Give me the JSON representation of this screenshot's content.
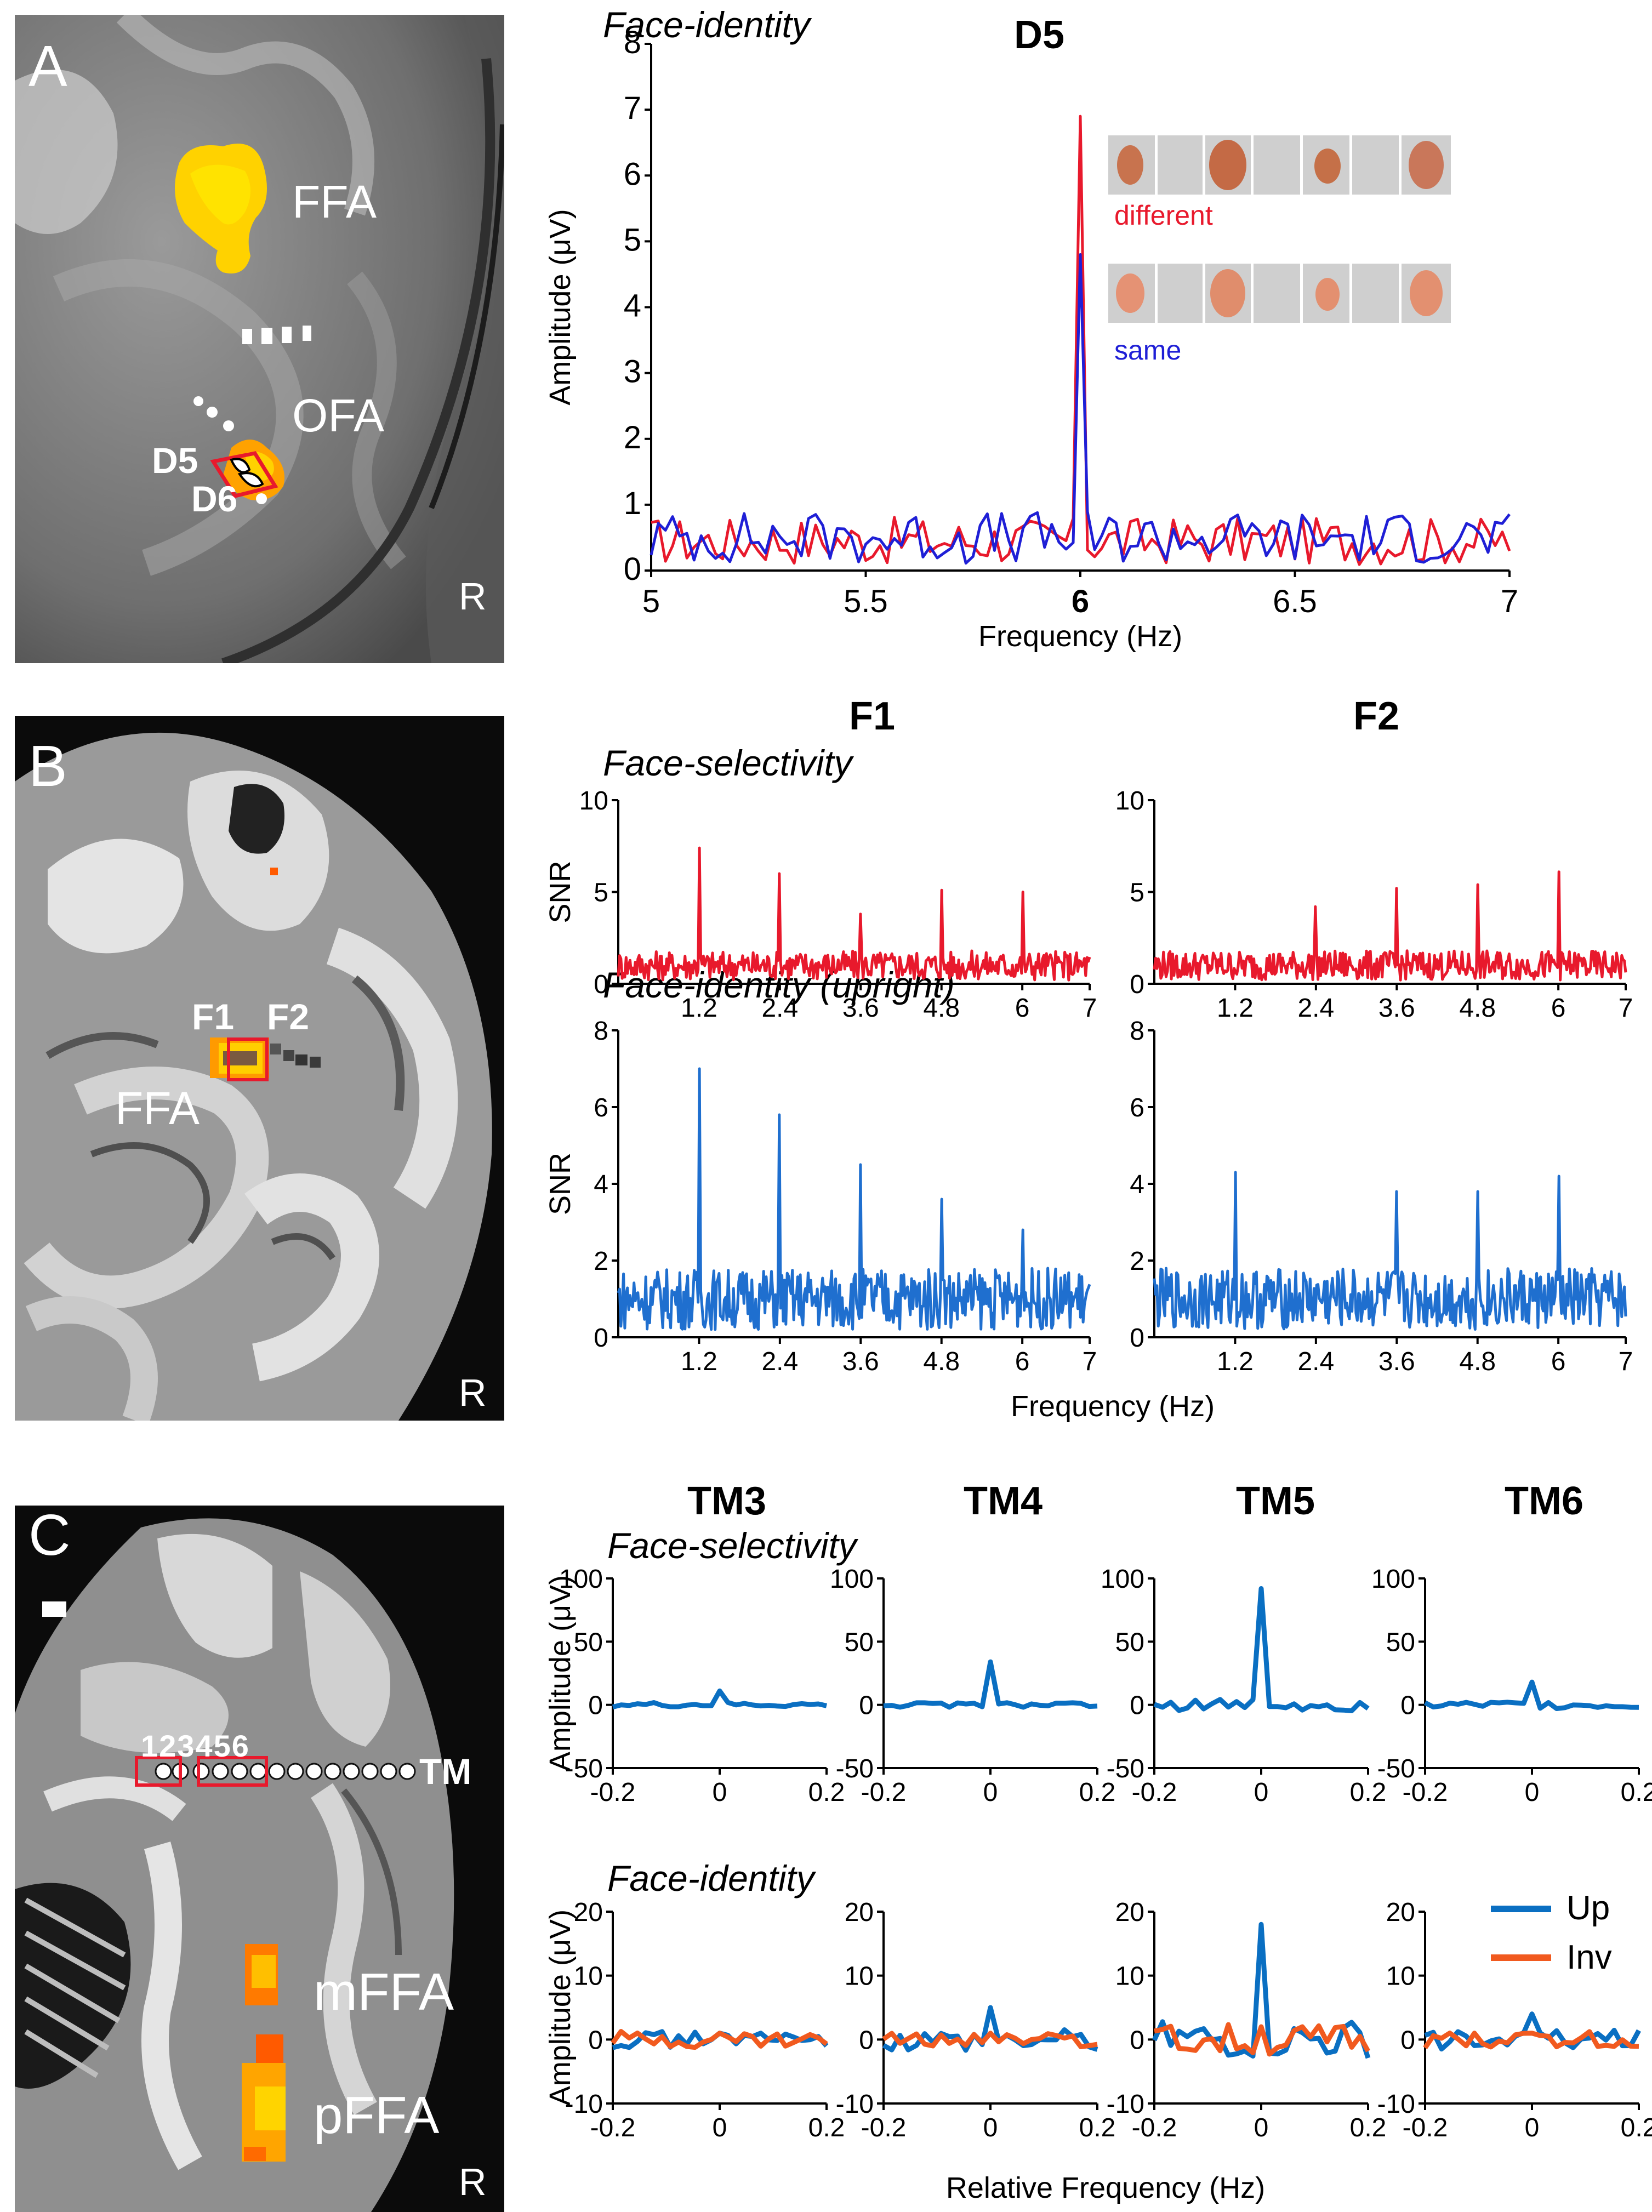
{
  "panels": {
    "A": {
      "letter": "A",
      "labels": {
        "ffa": "FFA",
        "ofa": "OFA",
        "d5": "D5",
        "d6": "D6",
        "r": "R"
      },
      "chart_title": "D5",
      "section_title": "Face-identity",
      "legend": {
        "different": "different",
        "same": "same"
      }
    },
    "B": {
      "letter": "B",
      "labels": {
        "f1": "F1",
        "f2": "F2",
        "ffa": "FFA",
        "r": "R"
      },
      "col_titles": [
        "F1",
        "F2"
      ],
      "section_titles": [
        "Face-selectivity",
        "Face-identity (upright)"
      ],
      "xlabel": "Frequency (Hz)"
    },
    "C": {
      "letter": "C",
      "labels": {
        "numbers": "123456",
        "tm": "TM",
        "mffa": "mFFA",
        "pffa": "pFFA",
        "r": "R"
      },
      "col_titles": [
        "TM3",
        "TM4",
        "TM5",
        "TM6"
      ],
      "section_titles": [
        "Face-selectivity",
        "Face-identity"
      ],
      "xlabel": "Relative Frequency (Hz)",
      "legend": {
        "up": "Up",
        "inv": "Inv"
      }
    }
  },
  "colors": {
    "red": "#e8192c",
    "blue": "#1f1fd6",
    "cblue": "#0a6fc2",
    "corange": "#f15a1f",
    "face_blue": "#1f6fcf"
  },
  "chart_data": [
    {
      "id": "A-D5",
      "type": "line",
      "title": "D5",
      "xlabel": "Frequency (Hz)",
      "ylabel": "Amplitude (μV)",
      "xlim": [
        5,
        7
      ],
      "ylim": [
        0,
        8
      ],
      "xticks": [
        "5",
        "5.5",
        "6",
        "6.5",
        "7"
      ],
      "yticks": [
        "0",
        "1",
        "2",
        "3",
        "4",
        "5",
        "6",
        "7",
        "8"
      ],
      "series": [
        {
          "name": "different",
          "color": "#e8192c",
          "peaks": [
            [
              6.0,
              6.9
            ]
          ],
          "baseline": 0.45
        },
        {
          "name": "same",
          "color": "#1f1fd6",
          "peaks": [
            [
              6.0,
              4.8
            ]
          ],
          "baseline": 0.5
        }
      ]
    },
    {
      "id": "B-F1-sel",
      "type": "line",
      "ylabel": "SNR",
      "xlim": [
        0,
        7
      ],
      "ylim": [
        0,
        10
      ],
      "xticks": [
        "1.2",
        "2.4",
        "3.6",
        "4.8",
        "6",
        "7"
      ],
      "yticks": [
        "0",
        "5",
        "10"
      ],
      "series": [
        {
          "name": "Face-selectivity",
          "color": "#e8192c",
          "peaks": [
            [
              1.2,
              7.4
            ],
            [
              2.4,
              6.0
            ],
            [
              3.6,
              3.8
            ],
            [
              4.8,
              5.1
            ],
            [
              6.0,
              5.0
            ]
          ],
          "baseline": 1.0
        }
      ]
    },
    {
      "id": "B-F2-sel",
      "type": "line",
      "ylabel": "",
      "xlim": [
        0,
        7
      ],
      "ylim": [
        0,
        10
      ],
      "xticks": [
        "1.2",
        "2.4",
        "3.6",
        "4.8",
        "6",
        "7"
      ],
      "yticks": [
        "0",
        "5",
        "10"
      ],
      "series": [
        {
          "name": "Face-selectivity",
          "color": "#e8192c",
          "peaks": [
            [
              2.4,
              4.2
            ],
            [
              3.6,
              5.2
            ],
            [
              4.8,
              5.4
            ],
            [
              6.0,
              6.1
            ]
          ],
          "baseline": 1.0
        }
      ]
    },
    {
      "id": "B-F1-id",
      "type": "line",
      "ylabel": "SNR",
      "xlim": [
        0,
        7
      ],
      "ylim": [
        0,
        8
      ],
      "xticks": [
        "1.2",
        "2.4",
        "3.6",
        "4.8",
        "6",
        "7"
      ],
      "yticks": [
        "0",
        "2",
        "4",
        "6",
        "8"
      ],
      "series": [
        {
          "name": "Face-identity (upright)",
          "color": "#1f6fcf",
          "peaks": [
            [
              1.2,
              7.0
            ],
            [
              2.4,
              5.8
            ],
            [
              3.6,
              4.5
            ],
            [
              4.8,
              3.6
            ],
            [
              6.0,
              2.8
            ]
          ],
          "baseline": 1.0
        }
      ]
    },
    {
      "id": "B-F2-id",
      "type": "line",
      "ylabel": "",
      "xlim": [
        0,
        7
      ],
      "ylim": [
        0,
        8
      ],
      "xticks": [
        "1.2",
        "2.4",
        "3.6",
        "4.8",
        "6",
        "7"
      ],
      "yticks": [
        "0",
        "2",
        "4",
        "6",
        "8"
      ],
      "series": [
        {
          "name": "Face-identity (upright)",
          "color": "#1f6fcf",
          "peaks": [
            [
              1.2,
              4.3
            ],
            [
              3.6,
              3.8
            ],
            [
              4.8,
              3.8
            ],
            [
              6.0,
              4.2
            ]
          ],
          "baseline": 1.0
        }
      ]
    },
    {
      "id": "C-TM3-sel",
      "type": "line",
      "ylabel": "Amplitude (μV)",
      "xlim": [
        -0.2,
        0.2
      ],
      "ylim": [
        -50,
        100
      ],
      "xticks": [
        "-0.2",
        "0",
        "0.2"
      ],
      "yticks": [
        "-50",
        "0",
        "50",
        "100"
      ],
      "series": [
        {
          "name": "Up",
          "color": "#0a6fc2",
          "peak": 11,
          "noise": 2
        }
      ]
    },
    {
      "id": "C-TM4-sel",
      "type": "line",
      "ylabel": "",
      "xlim": [
        -0.2,
        0.2
      ],
      "ylim": [
        -50,
        100
      ],
      "xticks": [
        "-0.2",
        "0",
        "0.2"
      ],
      "yticks": [
        "-50",
        "0",
        "50",
        "100"
      ],
      "series": [
        {
          "name": "Up",
          "color": "#0a6fc2",
          "peak": 34,
          "noise": 2
        }
      ]
    },
    {
      "id": "C-TM5-sel",
      "type": "line",
      "ylabel": "",
      "xlim": [
        -0.2,
        0.2
      ],
      "ylim": [
        -50,
        100
      ],
      "xticks": [
        "-0.2",
        "0",
        "0.2"
      ],
      "yticks": [
        "-50",
        "0",
        "50",
        "100"
      ],
      "series": [
        {
          "name": "Up",
          "color": "#0a6fc2",
          "peak": 92,
          "noise": 5
        }
      ]
    },
    {
      "id": "C-TM6-sel",
      "type": "line",
      "ylabel": "",
      "xlim": [
        -0.2,
        0.2
      ],
      "ylim": [
        -50,
        100
      ],
      "xticks": [
        "-0.2",
        "0",
        "0.2"
      ],
      "yticks": [
        "-50",
        "0",
        "50",
        "100"
      ],
      "series": [
        {
          "name": "Up",
          "color": "#0a6fc2",
          "peak": 18,
          "noise": 3
        }
      ]
    },
    {
      "id": "C-TM3-id",
      "type": "line",
      "ylabel": "Amplitude (μV)",
      "xlim": [
        -0.2,
        0.2
      ],
      "ylim": [
        -10,
        20
      ],
      "xticks": [
        "-0.2",
        "0",
        "0.2"
      ],
      "yticks": [
        "-10",
        "0",
        "10",
        "20"
      ],
      "series": [
        {
          "name": "Up",
          "color": "#0a6fc2",
          "peak": 1,
          "noise": 1.3
        },
        {
          "name": "Inv",
          "color": "#f15a1f",
          "peak": 1,
          "noise": 1.3
        }
      ]
    },
    {
      "id": "C-TM4-id",
      "type": "line",
      "ylabel": "",
      "xlim": [
        -0.2,
        0.2
      ],
      "ylim": [
        -10,
        20
      ],
      "xticks": [
        "-0.2",
        "0",
        "0.2"
      ],
      "yticks": [
        "-10",
        "0",
        "10",
        "20"
      ],
      "series": [
        {
          "name": "Up",
          "color": "#0a6fc2",
          "peak": 5,
          "noise": 1.8
        },
        {
          "name": "Inv",
          "color": "#f15a1f",
          "peak": 1,
          "noise": 1.2
        }
      ]
    },
    {
      "id": "C-TM5-id",
      "type": "line",
      "ylabel": "",
      "xlim": [
        -0.2,
        0.2
      ],
      "ylim": [
        -10,
        20
      ],
      "xticks": [
        "-0.2",
        "0",
        "0.2"
      ],
      "yticks": [
        "-10",
        "0",
        "10",
        "20"
      ],
      "series": [
        {
          "name": "Up",
          "color": "#0a6fc2",
          "peak": 18,
          "noise": 3
        },
        {
          "name": "Inv",
          "color": "#f15a1f",
          "peak": 2,
          "noise": 2.5
        }
      ]
    },
    {
      "id": "C-TM6-id",
      "type": "line",
      "ylabel": "",
      "xlim": [
        -0.2,
        0.2
      ],
      "ylim": [
        -10,
        20
      ],
      "xticks": [
        "-0.2",
        "0",
        "0.2"
      ],
      "yticks": [
        "-10",
        "0",
        "10",
        "20"
      ],
      "series": [
        {
          "name": "Up",
          "color": "#0a6fc2",
          "peak": 4,
          "noise": 1.5
        },
        {
          "name": "Inv",
          "color": "#f15a1f",
          "peak": 1,
          "noise": 1.3
        }
      ]
    }
  ]
}
